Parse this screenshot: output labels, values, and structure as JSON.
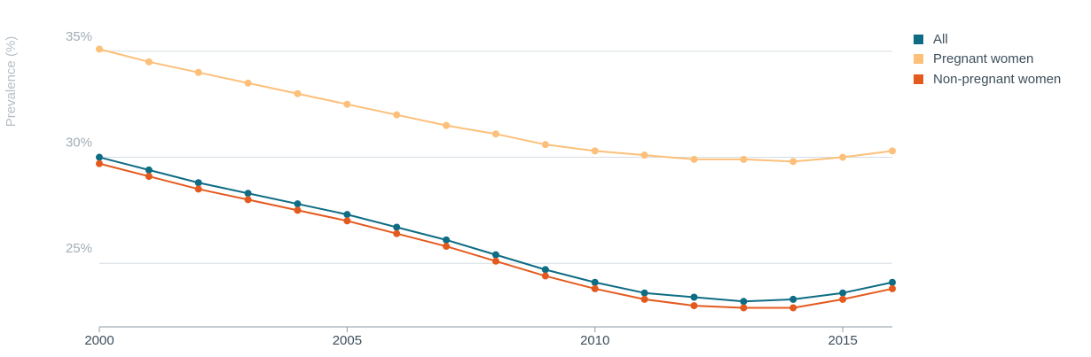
{
  "chart_data": {
    "type": "line",
    "ylabel": "Prevalence (%)",
    "xlabel": "",
    "x": [
      2000,
      2001,
      2002,
      2003,
      2004,
      2005,
      2006,
      2007,
      2008,
      2009,
      2010,
      2011,
      2012,
      2013,
      2014,
      2015,
      2016
    ],
    "xlim": [
      2000,
      2016
    ],
    "ylim": [
      22.0,
      37.0
    ],
    "x_ticks": [
      "2000",
      "2005",
      "2010",
      "2015"
    ],
    "y_ticks": [
      "25%",
      "30%",
      "35%"
    ],
    "grid": "horizontal",
    "legend_position": "top-right",
    "series": [
      {
        "name": "All",
        "color": "#0e6c84",
        "values": [
          30.0,
          29.4,
          28.8,
          28.3,
          27.8,
          27.3,
          26.7,
          26.1,
          25.4,
          24.7,
          24.1,
          23.6,
          23.4,
          23.2,
          23.3,
          23.6,
          24.1
        ]
      },
      {
        "name": "Pregnant women",
        "color": "#fcc07a",
        "values": [
          35.1,
          34.5,
          34.0,
          33.5,
          33.0,
          32.5,
          32.0,
          31.5,
          31.1,
          30.6,
          30.3,
          30.1,
          29.9,
          29.9,
          29.8,
          30.0,
          30.3
        ]
      },
      {
        "name": "Non-pregnant women",
        "color": "#e45a1e",
        "values": [
          29.7,
          29.1,
          28.5,
          28.0,
          27.5,
          27.0,
          26.4,
          25.8,
          25.1,
          24.4,
          23.8,
          23.3,
          23.0,
          22.9,
          22.9,
          23.3,
          23.8
        ]
      }
    ]
  }
}
